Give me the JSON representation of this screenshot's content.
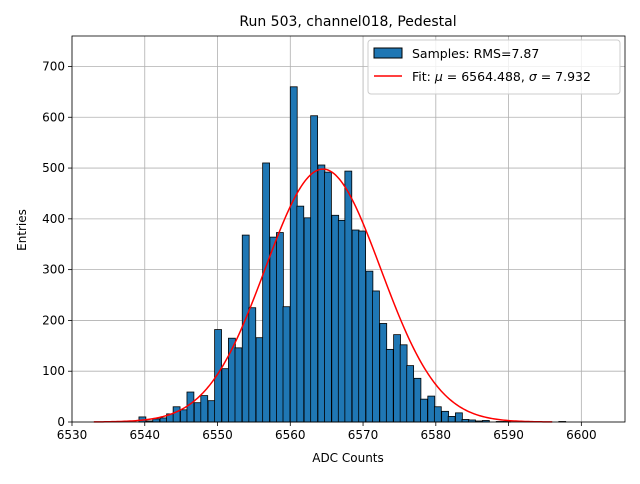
{
  "chart_data": {
    "type": "bar",
    "title": "Run 503, channel018, Pedestal",
    "xlabel": "ADC Counts",
    "ylabel": "Entries",
    "xlim": [
      6530,
      6606
    ],
    "ylim": [
      0,
      760
    ],
    "xticks": [
      6530,
      6540,
      6550,
      6560,
      6570,
      6580,
      6590,
      6600
    ],
    "yticks": [
      0,
      100,
      200,
      300,
      400,
      500,
      600,
      700
    ],
    "grid": true,
    "legend_position": "top-right",
    "colors": {
      "bars": "#1f77b4",
      "fit": "#ff0000",
      "bar_edge": "#000000"
    },
    "series": [
      {
        "name": "Samples: RMS=7.87",
        "kind": "histogram",
        "bin_width": 0.95,
        "bins": [
          [
            6539.2,
            10
          ],
          [
            6540.2,
            2
          ],
          [
            6541.1,
            6
          ],
          [
            6542.1,
            8
          ],
          [
            6543.0,
            16
          ],
          [
            6543.9,
            30
          ],
          [
            6544.9,
            24
          ],
          [
            6545.8,
            59
          ],
          [
            6546.8,
            38
          ],
          [
            6547.7,
            52
          ],
          [
            6548.7,
            42
          ],
          [
            6549.6,
            182
          ],
          [
            6550.6,
            105
          ],
          [
            6551.5,
            165
          ],
          [
            6552.4,
            146
          ],
          [
            6553.4,
            368
          ],
          [
            6554.3,
            225
          ],
          [
            6555.3,
            166
          ],
          [
            6556.2,
            510
          ],
          [
            6557.2,
            364
          ],
          [
            6558.1,
            373
          ],
          [
            6559.0,
            227
          ],
          [
            6560.0,
            660
          ],
          [
            6560.9,
            425
          ],
          [
            6561.9,
            402
          ],
          [
            6562.8,
            603
          ],
          [
            6563.8,
            506
          ],
          [
            6564.7,
            492
          ],
          [
            6565.7,
            407
          ],
          [
            6566.6,
            397
          ],
          [
            6567.5,
            494
          ],
          [
            6568.5,
            378
          ],
          [
            6569.4,
            376
          ],
          [
            6570.4,
            297
          ],
          [
            6571.3,
            258
          ],
          [
            6572.3,
            194
          ],
          [
            6573.2,
            143
          ],
          [
            6574.2,
            172
          ],
          [
            6575.1,
            152
          ],
          [
            6576.0,
            111
          ],
          [
            6577.0,
            86
          ],
          [
            6577.9,
            45
          ],
          [
            6578.9,
            51
          ],
          [
            6579.8,
            30
          ],
          [
            6580.8,
            21
          ],
          [
            6581.7,
            11
          ],
          [
            6582.7,
            18
          ],
          [
            6583.6,
            5
          ],
          [
            6584.5,
            4
          ],
          [
            6585.5,
            2
          ],
          [
            6586.4,
            3
          ],
          [
            6588.3,
            1
          ],
          [
            6589.3,
            1
          ],
          [
            6596.9,
            1
          ]
        ]
      },
      {
        "name": "Fit: μ = 6564.488, σ = 7.932",
        "kind": "gaussian_fit",
        "mu": 6564.488,
        "sigma": 7.932,
        "amplitude": 498,
        "x_range": [
          6533,
          6596
        ]
      }
    ]
  },
  "legend": {
    "samples_label": "Samples: RMS=7.87",
    "fit_label_prefix": "Fit: ",
    "fit_mu_symbol": "μ",
    "fit_mu_value": " = 6564.488, ",
    "fit_sigma_symbol": "σ",
    "fit_sigma_value": " = 7.932"
  }
}
